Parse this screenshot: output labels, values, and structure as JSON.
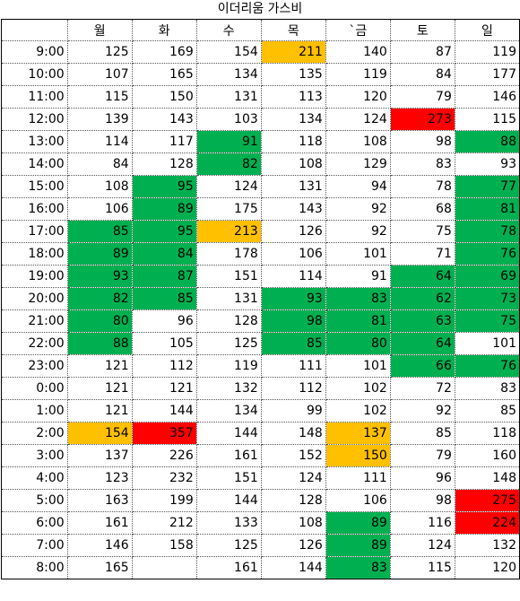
{
  "title": "이더리움 가스비",
  "colors": {
    "green": "#00b050",
    "orange": "#ffc000",
    "red": "#ff0000"
  },
  "days": [
    "월",
    "화",
    "수",
    "목",
    "`금",
    "토",
    "일"
  ],
  "rows": [
    {
      "time": "9:00",
      "values": [
        "125",
        "169",
        "154",
        "211",
        "140",
        "87",
        "119"
      ],
      "highlights": [
        "",
        "",
        "",
        "orange",
        "",
        "",
        ""
      ]
    },
    {
      "time": "10:00",
      "values": [
        "107",
        "165",
        "134",
        "135",
        "119",
        "84",
        "177"
      ],
      "highlights": [
        "",
        "",
        "",
        "",
        "",
        "",
        ""
      ]
    },
    {
      "time": "11:00",
      "values": [
        "115",
        "150",
        "131",
        "113",
        "120",
        "79",
        "146"
      ],
      "highlights": [
        "",
        "",
        "",
        "",
        "",
        "",
        ""
      ]
    },
    {
      "time": "12:00",
      "values": [
        "139",
        "143",
        "103",
        "134",
        "124",
        "273",
        "115"
      ],
      "highlights": [
        "",
        "",
        "",
        "",
        "",
        "red",
        ""
      ]
    },
    {
      "time": "13:00",
      "values": [
        "114",
        "117",
        "91",
        "118",
        "108",
        "98",
        "88"
      ],
      "highlights": [
        "",
        "",
        "green",
        "",
        "",
        "",
        "green"
      ]
    },
    {
      "time": "14:00",
      "values": [
        "84",
        "128",
        "82",
        "108",
        "129",
        "83",
        "93"
      ],
      "highlights": [
        "",
        "",
        "green",
        "",
        "",
        "",
        ""
      ]
    },
    {
      "time": "15:00",
      "values": [
        "108",
        "95",
        "124",
        "131",
        "94",
        "78",
        "77"
      ],
      "highlights": [
        "",
        "green",
        "",
        "",
        "",
        "",
        "green"
      ]
    },
    {
      "time": "16:00",
      "values": [
        "106",
        "89",
        "175",
        "143",
        "92",
        "68",
        "81"
      ],
      "highlights": [
        "",
        "green",
        "",
        "",
        "",
        "",
        "green"
      ]
    },
    {
      "time": "17:00",
      "values": [
        "85",
        "95",
        "213",
        "126",
        "92",
        "75",
        "78"
      ],
      "highlights": [
        "green",
        "green",
        "orange",
        "",
        "",
        "",
        "green"
      ]
    },
    {
      "time": "18:00",
      "values": [
        "89",
        "84",
        "178",
        "106",
        "101",
        "71",
        "76"
      ],
      "highlights": [
        "green",
        "green",
        "",
        "",
        "",
        "",
        "green"
      ]
    },
    {
      "time": "19:00",
      "values": [
        "93",
        "87",
        "151",
        "114",
        "91",
        "64",
        "69"
      ],
      "highlights": [
        "green",
        "green",
        "",
        "",
        "",
        "green",
        "green"
      ]
    },
    {
      "time": "20:00",
      "values": [
        "82",
        "85",
        "131",
        "93",
        "83",
        "62",
        "73"
      ],
      "highlights": [
        "green",
        "green",
        "",
        "green",
        "green",
        "green",
        "green"
      ]
    },
    {
      "time": "21:00",
      "values": [
        "80",
        "96",
        "128",
        "98",
        "81",
        "63",
        "75"
      ],
      "highlights": [
        "green",
        "",
        "",
        "green",
        "green",
        "green",
        "green"
      ]
    },
    {
      "time": "22:00",
      "values": [
        "88",
        "105",
        "125",
        "85",
        "80",
        "64",
        "101"
      ],
      "highlights": [
        "green",
        "",
        "",
        "green",
        "green",
        "green",
        ""
      ]
    },
    {
      "time": "23:00",
      "values": [
        "121",
        "112",
        "119",
        "111",
        "101",
        "66",
        "76"
      ],
      "highlights": [
        "",
        "",
        "",
        "",
        "",
        "green",
        "green"
      ]
    },
    {
      "time": "0:00",
      "values": [
        "121",
        "121",
        "132",
        "112",
        "102",
        "72",
        "83"
      ],
      "highlights": [
        "",
        "",
        "",
        "",
        "",
        "",
        ""
      ]
    },
    {
      "time": "1:00",
      "values": [
        "121",
        "144",
        "134",
        "99",
        "102",
        "92",
        "85"
      ],
      "highlights": [
        "",
        "",
        "",
        "",
        "",
        "",
        ""
      ]
    },
    {
      "time": "2:00",
      "values": [
        "154",
        "357",
        "144",
        "148",
        "137",
        "85",
        "118"
      ],
      "highlights": [
        "orange",
        "red",
        "",
        "",
        "orange",
        "",
        ""
      ]
    },
    {
      "time": "3:00",
      "values": [
        "137",
        "226",
        "161",
        "152",
        "150",
        "79",
        "160"
      ],
      "highlights": [
        "",
        "",
        "",
        "",
        "orange",
        "",
        ""
      ]
    },
    {
      "time": "4:00",
      "values": [
        "123",
        "232",
        "151",
        "124",
        "111",
        "96",
        "148"
      ],
      "highlights": [
        "",
        "",
        "",
        "",
        "",
        "",
        ""
      ]
    },
    {
      "time": "5:00",
      "values": [
        "163",
        "199",
        "144",
        "128",
        "106",
        "98",
        "275"
      ],
      "highlights": [
        "",
        "",
        "",
        "",
        "",
        "",
        "red"
      ]
    },
    {
      "time": "6:00",
      "values": [
        "161",
        "212",
        "133",
        "108",
        "89",
        "116",
        "224"
      ],
      "highlights": [
        "",
        "",
        "",
        "",
        "green",
        "",
        "red"
      ]
    },
    {
      "time": "7:00",
      "values": [
        "146",
        "158",
        "125",
        "126",
        "89",
        "124",
        "132"
      ],
      "highlights": [
        "",
        "",
        "",
        "",
        "green",
        "",
        ""
      ]
    },
    {
      "time": "8:00",
      "values": [
        "165",
        "",
        "161",
        "144",
        "83",
        "115",
        "120"
      ],
      "highlights": [
        "",
        "",
        "",
        "",
        "green",
        "",
        ""
      ]
    }
  ]
}
